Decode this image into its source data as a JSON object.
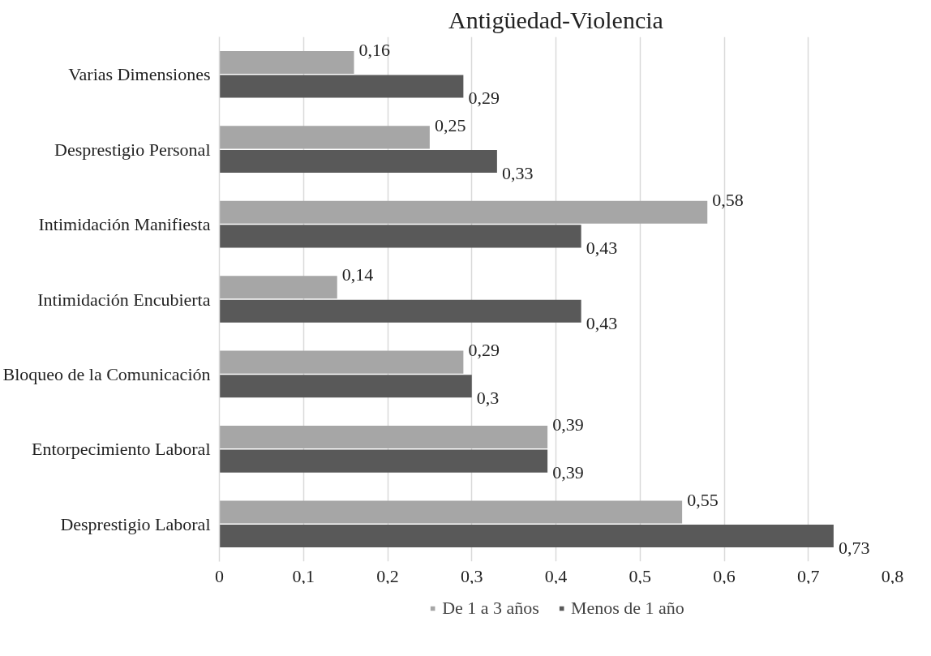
{
  "chart_data": {
    "type": "bar",
    "orientation": "horizontal",
    "title": "Antigüedad-Violencia",
    "categories": [
      "Varias Dimensiones",
      "Desprestigio Personal",
      "Intimidación Manifiesta",
      "Intimidación Encubierta",
      "Bloqueo de la Comunicación",
      "Entorpecimiento Laboral",
      "Desprestigio Laboral"
    ],
    "series": [
      {
        "name": "De 1 a 3 años",
        "color": "#a6a6a6",
        "values": [
          0.16,
          0.25,
          0.58,
          0.14,
          0.29,
          0.39,
          0.55
        ],
        "value_labels": [
          "0,16",
          "0,25",
          "0,58",
          "0,14",
          "0,29",
          "0,39",
          "0,55"
        ]
      },
      {
        "name": "Menos de 1 año",
        "color": "#595959",
        "values": [
          0.29,
          0.33,
          0.43,
          0.43,
          0.3,
          0.39,
          0.73
        ],
        "value_labels": [
          "0,29",
          "0,33",
          "0,43",
          "0,43",
          "0,3",
          "0,39",
          "0,73"
        ]
      }
    ],
    "xlim": [
      0,
      0.8
    ],
    "xticks": [
      0,
      {
        "value": 0.1,
        "label": "0,1"
      },
      {
        "value": 0.2,
        "label": "0,2"
      },
      {
        "value": 0.3,
        "label": "0,3"
      },
      {
        "value": 0.4,
        "label": "0,4"
      },
      {
        "value": 0.5,
        "label": "0,5"
      },
      {
        "value": 0.6,
        "label": "0,6"
      },
      {
        "value": 0.7,
        "label": "0,7"
      },
      {
        "value": 0.8,
        "label": "0,8"
      }
    ],
    "grid": "x",
    "legend": "bottom"
  }
}
